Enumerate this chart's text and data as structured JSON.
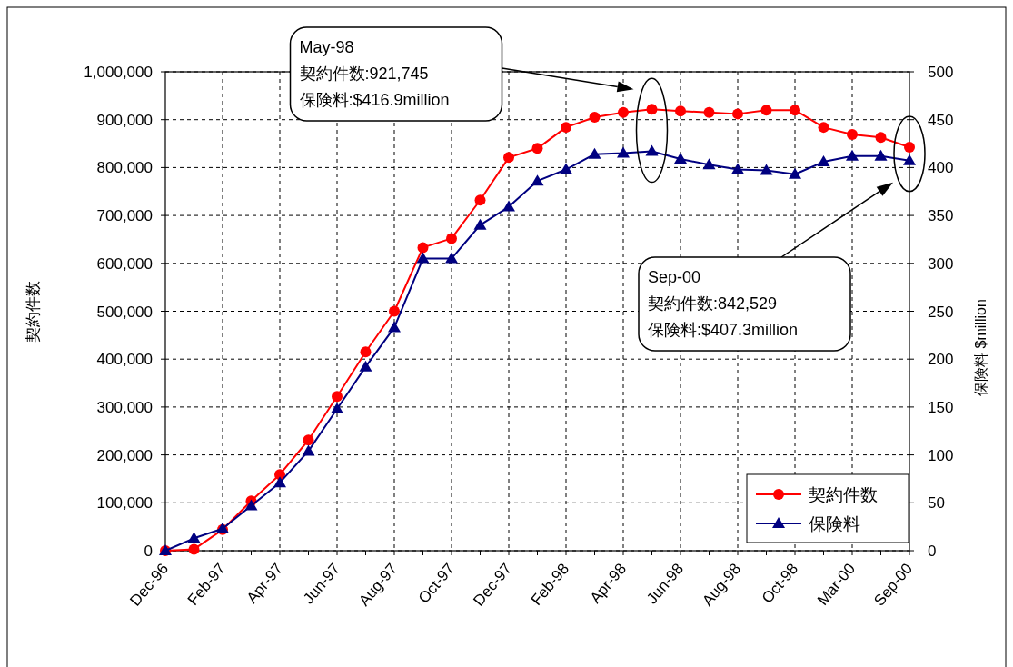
{
  "chart_data": {
    "type": "line",
    "categories": [
      "Dec-96",
      null,
      "Feb-97",
      null,
      "Apr-97",
      null,
      "Jun-97",
      null,
      "Aug-97",
      null,
      "Oct-97",
      null,
      "Dec-97",
      null,
      "Feb-98",
      null,
      "Apr-98",
      null,
      "Jun-98",
      null,
      "Aug-98",
      null,
      "Oct-98",
      null,
      "Mar-00",
      null,
      "Sep-00"
    ],
    "series": [
      {
        "name": "契約件数",
        "color": "#ff0000",
        "marker": "circle",
        "values": [
          0,
          3000,
          44000,
          104000,
          159000,
          231000,
          322000,
          415000,
          500000,
          633000,
          652000,
          732000,
          821000,
          840000,
          884000,
          905000,
          915000,
          921745,
          918000,
          915000,
          912000,
          920000,
          920000,
          884000,
          869000,
          863000,
          842529
        ]
      },
      {
        "name": "保険料",
        "color": "#000080",
        "marker": "triangle",
        "axis": "y2",
        "values": [
          0,
          13,
          23,
          47,
          71,
          104,
          148,
          192,
          233,
          305,
          305,
          340,
          359,
          386,
          398,
          414,
          415,
          416.9,
          409,
          403,
          398,
          397,
          393,
          406,
          412,
          412,
          407.3
        ]
      }
    ],
    "ylabel": "契約件数",
    "y2label": "保険料 $million",
    "ylim": [
      0,
      1000000
    ],
    "yticks": [
      {
        "value": 0,
        "label": "0"
      },
      {
        "value": 100000,
        "label": "100,000"
      },
      {
        "value": 200000,
        "label": "200,000"
      },
      {
        "value": 300000,
        "label": "300,000"
      },
      {
        "value": 400000,
        "label": "400,000"
      },
      {
        "value": 500000,
        "label": "500,000"
      },
      {
        "value": 600000,
        "label": "600,000"
      },
      {
        "value": 700000,
        "label": "700,000"
      },
      {
        "value": 800000,
        "label": "800,000"
      },
      {
        "value": 900000,
        "label": "900,000"
      },
      {
        "value": 1000000,
        "label": "1,000,000"
      }
    ],
    "y2lim": [
      0,
      500
    ],
    "y2ticks": [
      0,
      50,
      100,
      150,
      200,
      250,
      300,
      350,
      400,
      450,
      500
    ],
    "grid": true,
    "legend": "bottom right",
    "line_style": "solid",
    "annotations": [
      "May-98\n契約件数:921,745\n保険料:$416.9million",
      "Sep-00\n契約件数:842,529\n保険料:$407.3million"
    ]
  }
}
